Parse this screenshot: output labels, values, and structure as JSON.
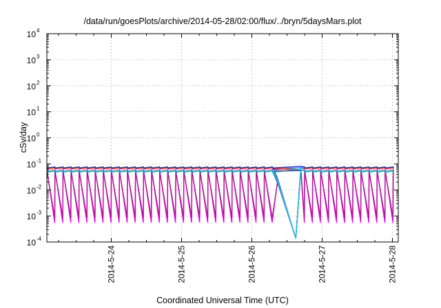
{
  "chart_data": {
    "type": "line",
    "title": "/data/run/goesPlots/archive/2014-05-28/02:00/flux/../bryn/5daysMars.plot",
    "xlabel": "Coordinated Universal Time (UTC)",
    "ylabel": "cSv/day",
    "x_range": [
      "2014-05-23T02:00",
      "2014-05-28T02:00"
    ],
    "y_scale": "log",
    "ylim": [
      0.0001,
      10000
    ],
    "y_ticks": [
      {
        "base": "10",
        "exp": "-4",
        "value": 0.0001
      },
      {
        "base": "10",
        "exp": "-3",
        "value": 0.001
      },
      {
        "base": "10",
        "exp": "-2",
        "value": 0.01
      },
      {
        "base": "10",
        "exp": "-1",
        "value": 0.1
      },
      {
        "base": "10",
        "exp": "0",
        "value": 1
      },
      {
        "base": "10",
        "exp": "1",
        "value": 10
      },
      {
        "base": "10",
        "exp": "2",
        "value": 100
      },
      {
        "base": "10",
        "exp": "3",
        "value": 1000
      },
      {
        "base": "10",
        "exp": "4",
        "value": 10000
      }
    ],
    "x_ticks": [
      "2014-5-24",
      "2014-5-25",
      "2014-5-26",
      "2014-5-27",
      "2014-5-28"
    ],
    "grid": true,
    "cycle_hours": 2.75,
    "series": [
      {
        "color": "#e000e0",
        "peak": 0.06,
        "trough": 0.0005
      },
      {
        "color": "#b01890",
        "peak": 0.055,
        "trough": 0.0008
      },
      {
        "color": "#ff1010",
        "peak": 0.07,
        "trough": 0.006
      },
      {
        "color": "#1030ff",
        "peak": 0.08,
        "trough": 0.004
      },
      {
        "color": "#109090",
        "peak": 0.06,
        "trough": 0.0015
      },
      {
        "color": "#20c8e8",
        "peak": 0.07,
        "trough": 0.0025
      }
    ],
    "dropout": {
      "start": "2014-05-26T08:45",
      "minimum": "2014-05-26T15:00",
      "end": "2014-05-26T16:45",
      "min_value": 0.00014
    }
  }
}
